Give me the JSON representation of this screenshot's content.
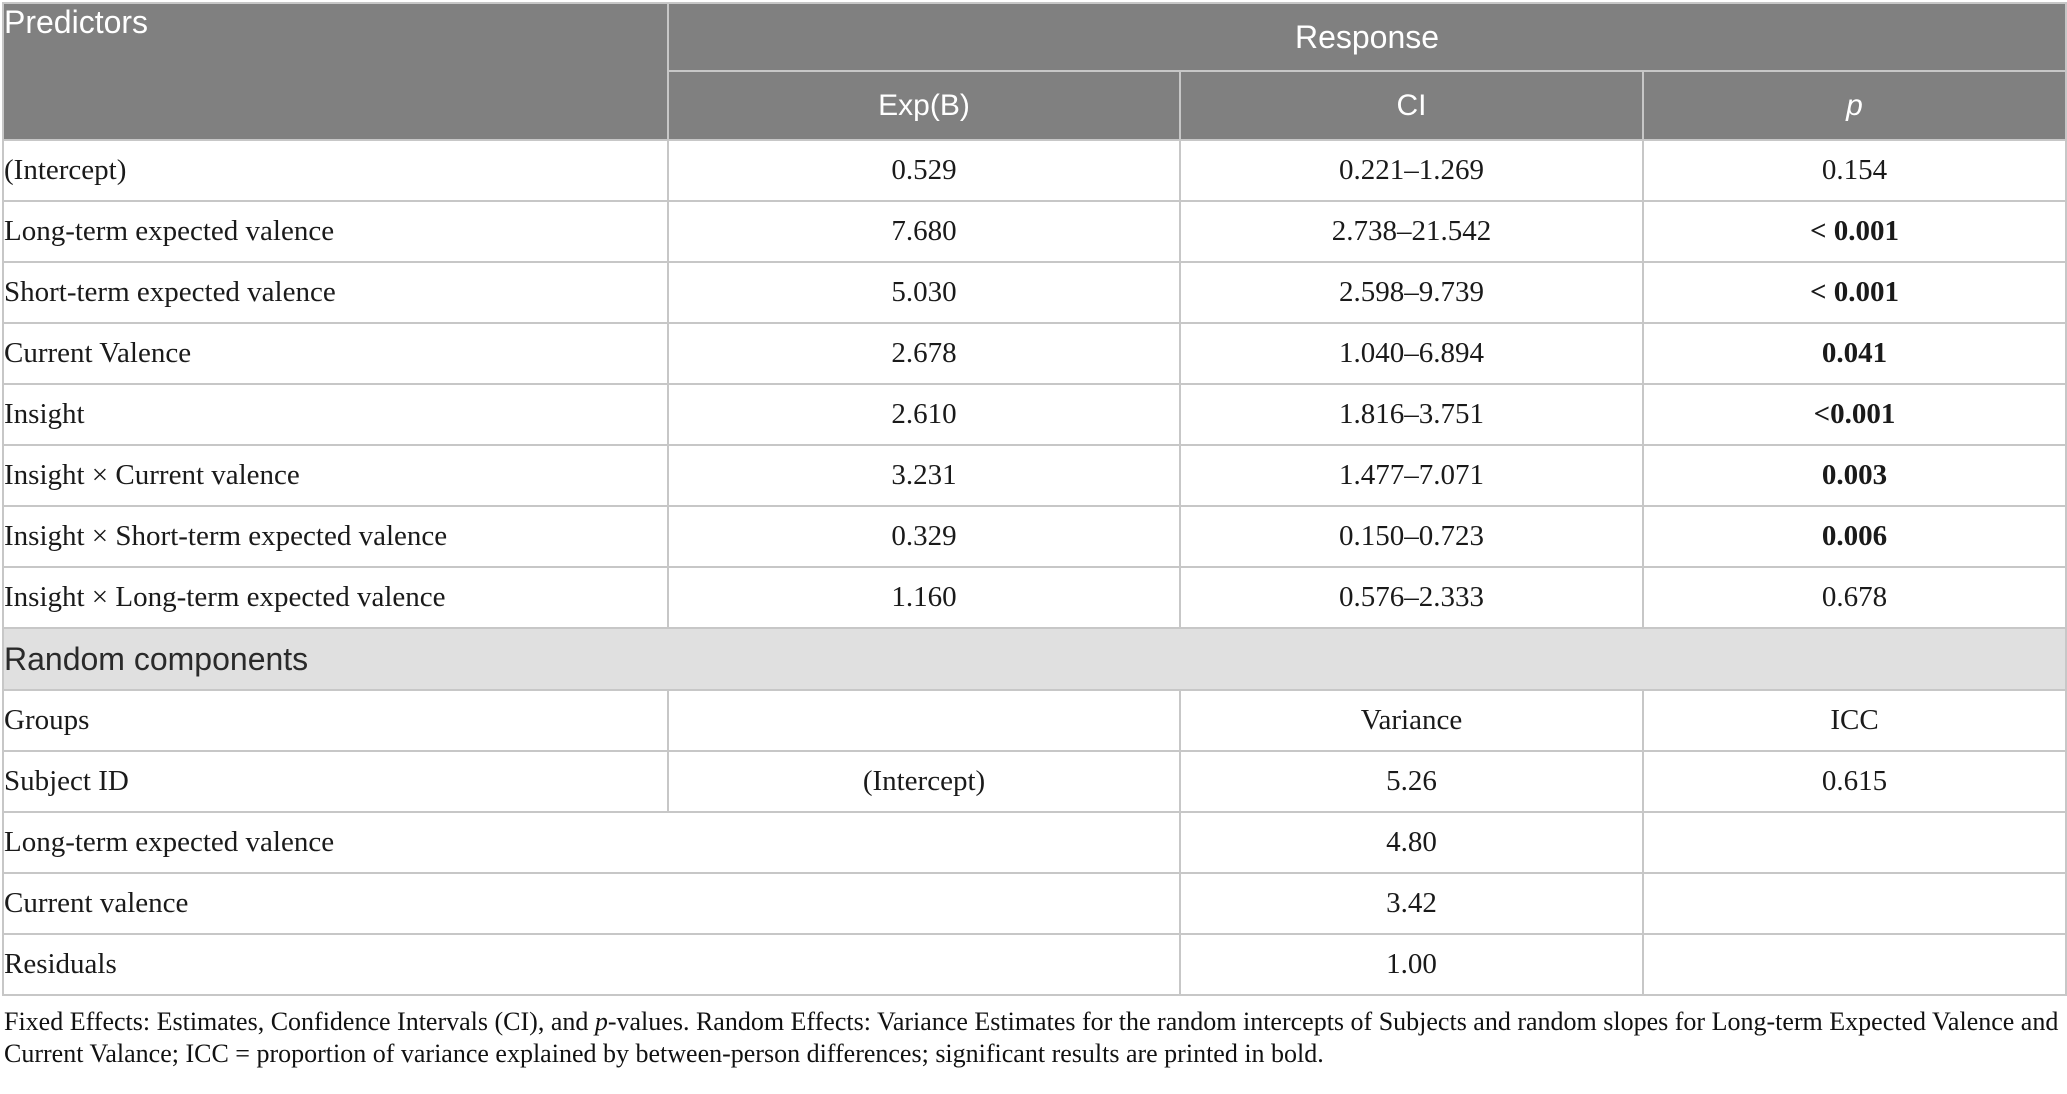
{
  "colors": {
    "header_bg": "#808080",
    "header_text": "#ffffff",
    "band_bg": "#e0e0e0",
    "border": "#c7c7c7",
    "body_text": "#1a1a1a"
  },
  "table": {
    "header": {
      "predictors": "Predictors",
      "response": "Response",
      "exp_b": "Exp(B)",
      "ci": "CI",
      "p": "p"
    },
    "fixed_rows": [
      {
        "label": "(Intercept)",
        "exp_b": "0.529",
        "ci": "0.221–1.269",
        "p": "0.154",
        "bold": false
      },
      {
        "label": "Long-term expected valence",
        "exp_b": "7.680",
        "ci": "2.738–21.542",
        "p": "< 0.001",
        "bold": true
      },
      {
        "label": "Short-term expected valence",
        "exp_b": "5.030",
        "ci": "2.598–9.739",
        "p": "< 0.001",
        "bold": true
      },
      {
        "label": "Current Valence",
        "exp_b": "2.678",
        "ci": "1.040–6.894",
        "p": "0.041",
        "bold": true
      },
      {
        "label": "Insight",
        "exp_b": "2.610",
        "ci": "1.816–3.751",
        "p": "<0.001",
        "bold": true
      },
      {
        "label": "Insight × Current valence",
        "exp_b": "3.231",
        "ci": "1.477–7.071",
        "p": "0.003",
        "bold": true
      },
      {
        "label": "Insight × Short-term expected valence",
        "exp_b": "0.329",
        "ci": "0.150–0.723",
        "p": "0.006",
        "bold": true
      },
      {
        "label": "Insight × Long-term expected valence",
        "exp_b": "1.160",
        "ci": "0.576–2.333",
        "p": "0.678",
        "bold": false
      }
    ],
    "random_header": "Random components",
    "groups_row": {
      "label": "Groups",
      "exp_b": "",
      "variance": "Variance",
      "icc": "ICC"
    },
    "subject_row": {
      "label": "Subject ID",
      "exp_b": "(Intercept)",
      "variance": "5.26",
      "icc": "0.615"
    },
    "random_rows": [
      {
        "label": "Long-term expected valence",
        "variance": "4.80",
        "icc": ""
      },
      {
        "label": "Current valence",
        "variance": "3.42",
        "icc": ""
      },
      {
        "label": "Residuals",
        "variance": "1.00",
        "icc": ""
      }
    ]
  },
  "footnote": {
    "part1": "Fixed Effects: Estimates, Confidence Intervals (CI), and ",
    "italic_p": "p",
    "part2": "-values. Random Effects: Variance Estimates for the random intercepts of Subjects and random slopes for Long-term Expected Valence and Current Valance; ICC = proportion of variance explained by between-person differences; significant results are printed in bold."
  }
}
